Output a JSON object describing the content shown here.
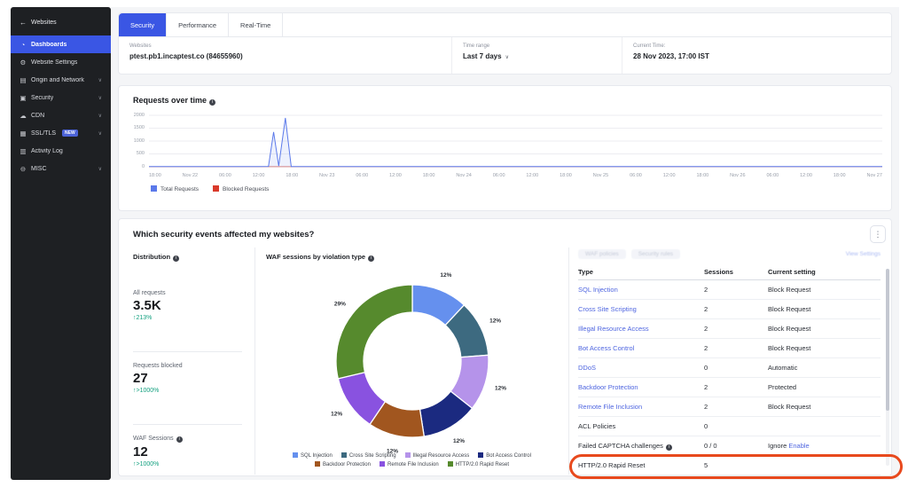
{
  "sidebar": {
    "back_label": "Websites",
    "items": [
      {
        "label": "Dashboards",
        "icon": "dashboard",
        "active": true
      },
      {
        "label": "Website Settings",
        "icon": "website-settings"
      },
      {
        "label": "Origin and Network",
        "icon": "origin-network",
        "chevron": true
      },
      {
        "label": "Security",
        "icon": "security-shield",
        "chevron": true
      },
      {
        "label": "CDN",
        "icon": "cdn-cloud",
        "chevron": true
      },
      {
        "label": "SSL/TLS",
        "icon": "ssl-certificate",
        "chevron": true,
        "badge": "NEW"
      },
      {
        "label": "Activity Log",
        "icon": "activity-log"
      },
      {
        "label": "MISC",
        "icon": "misc",
        "chevron": true
      }
    ]
  },
  "tabs": [
    {
      "label": "Security",
      "active": true
    },
    {
      "label": "Performance",
      "active": false
    },
    {
      "label": "Real-Time",
      "active": false
    }
  ],
  "filters": {
    "websites_label": "Websites",
    "websites_value": "ptest.pb1.incaptest.co (84655960)",
    "time_range_label": "Time range",
    "time_range_value": "Last 7 days",
    "current_time_label": "Current Time:",
    "current_time_value": "28 Nov 2023, 17:00 IST"
  },
  "requests_section": {
    "title": "Requests over time"
  },
  "events_section": {
    "title": "Which security events affected my websites?",
    "distribution": {
      "title": "Distribution",
      "stats": [
        {
          "label": "All requests",
          "value": "3.5K",
          "change": "↑213%",
          "info": false
        },
        {
          "label": "Requests blocked",
          "value": "27",
          "change": "↑>1000%",
          "info": false
        },
        {
          "label": "WAF Sessions",
          "value": "12",
          "change": "↑>1000%",
          "info": true
        }
      ]
    },
    "donut_title": "WAF sessions by violation type",
    "table": {
      "faded_tabs": [
        "WAF policies",
        "Security rules"
      ],
      "view_settings_label": "View Settings",
      "columns": [
        "Type",
        "Sessions",
        "Current setting"
      ],
      "rows": [
        {
          "type": "SQL Injection",
          "link": true,
          "info": false,
          "sessions": "2",
          "setting": "Block Request",
          "setting_link": "",
          "highlighted": false
        },
        {
          "type": "Cross Site Scripting",
          "link": true,
          "info": false,
          "sessions": "2",
          "setting": "Block Request",
          "setting_link": "",
          "highlighted": false
        },
        {
          "type": "Illegal Resource Access",
          "link": true,
          "info": false,
          "sessions": "2",
          "setting": "Block Request",
          "setting_link": "",
          "highlighted": false
        },
        {
          "type": "Bot Access Control",
          "link": true,
          "info": false,
          "sessions": "2",
          "setting": "Block Request",
          "setting_link": "",
          "highlighted": false
        },
        {
          "type": "DDoS",
          "link": true,
          "info": false,
          "sessions": "0",
          "setting": "Automatic",
          "setting_link": "",
          "highlighted": false
        },
        {
          "type": "Backdoor Protection",
          "link": true,
          "info": false,
          "sessions": "2",
          "setting": "Protected",
          "setting_link": "",
          "highlighted": false
        },
        {
          "type": "Remote File Inclusion",
          "link": true,
          "info": false,
          "sessions": "2",
          "setting": "Block Request",
          "setting_link": "",
          "highlighted": false
        },
        {
          "type": "ACL Policies",
          "link": false,
          "info": false,
          "sessions": "0",
          "setting": "",
          "setting_link": "",
          "highlighted": false
        },
        {
          "type": "Failed CAPTCHA challenges",
          "link": false,
          "info": true,
          "sessions": "0 / 0",
          "setting": "Ignore",
          "setting_link": "Enable",
          "highlighted": false
        },
        {
          "type": "HTTP/2.0 Rapid Reset",
          "link": false,
          "info": false,
          "sessions": "5",
          "setting": "",
          "setting_link": "",
          "highlighted": true
        }
      ]
    }
  },
  "chart_data": [
    {
      "id": "requests_over_time",
      "type": "line",
      "title": "Requests over time",
      "xlabel": "",
      "ylabel": "",
      "ylim": [
        0,
        2000
      ],
      "yticks": [
        0,
        500,
        1000,
        1500,
        2000
      ],
      "xticks": [
        "18:00",
        "Nov 22",
        "06:00",
        "12:00",
        "18:00",
        "Nov 23",
        "06:00",
        "12:00",
        "18:00",
        "Nov 24",
        "06:00",
        "12:00",
        "18:00",
        "Nov 25",
        "06:00",
        "12:00",
        "18:00",
        "Nov 26",
        "06:00",
        "12:00",
        "18:00",
        "Nov 27"
      ],
      "grid": true,
      "legend_position": "bottom-left",
      "series": [
        {
          "name": "Total Requests",
          "color": "#5b79ea",
          "points": [
            [
              0,
              10
            ],
            [
              0.15,
              10
            ],
            [
              0.163,
              15
            ],
            [
              0.17,
              1350
            ],
            [
              0.177,
              30
            ],
            [
              0.186,
              1900
            ],
            [
              0.194,
              12
            ],
            [
              0.3,
              10
            ],
            [
              0.6,
              10
            ],
            [
              1,
              10
            ]
          ]
        },
        {
          "name": "Blocked Requests",
          "color": "#d93a2b",
          "points": [
            [
              0,
              4
            ],
            [
              1,
              4
            ]
          ]
        }
      ]
    },
    {
      "id": "waf_sessions_by_violation_type",
      "type": "pie",
      "donut": true,
      "title": "WAF sessions by violation type",
      "segments": [
        {
          "label": "SQL Injection",
          "pct": 12,
          "color": "#6590ee"
        },
        {
          "label": "Cross Site Scripting",
          "pct": 12,
          "color": "#3d6a80"
        },
        {
          "label": "Illegal Resource Access",
          "pct": 12,
          "color": "#b593ea"
        },
        {
          "label": "Bot Access Control",
          "pct": 12,
          "color": "#1b2a80"
        },
        {
          "label": "Backdoor Protection",
          "pct": 12,
          "color": "#a1561f"
        },
        {
          "label": "Remote File Inclusion",
          "pct": 12,
          "color": "#8952e0"
        },
        {
          "label": "HTTP/2.0 Rapid Reset",
          "pct": 29,
          "color": "#568a2d"
        }
      ]
    }
  ],
  "colors": {
    "accent_blue": "#3a56e4",
    "link_blue": "#4f66e0",
    "positive_green": "#12a07f",
    "annotation_red": "#e8491d"
  }
}
